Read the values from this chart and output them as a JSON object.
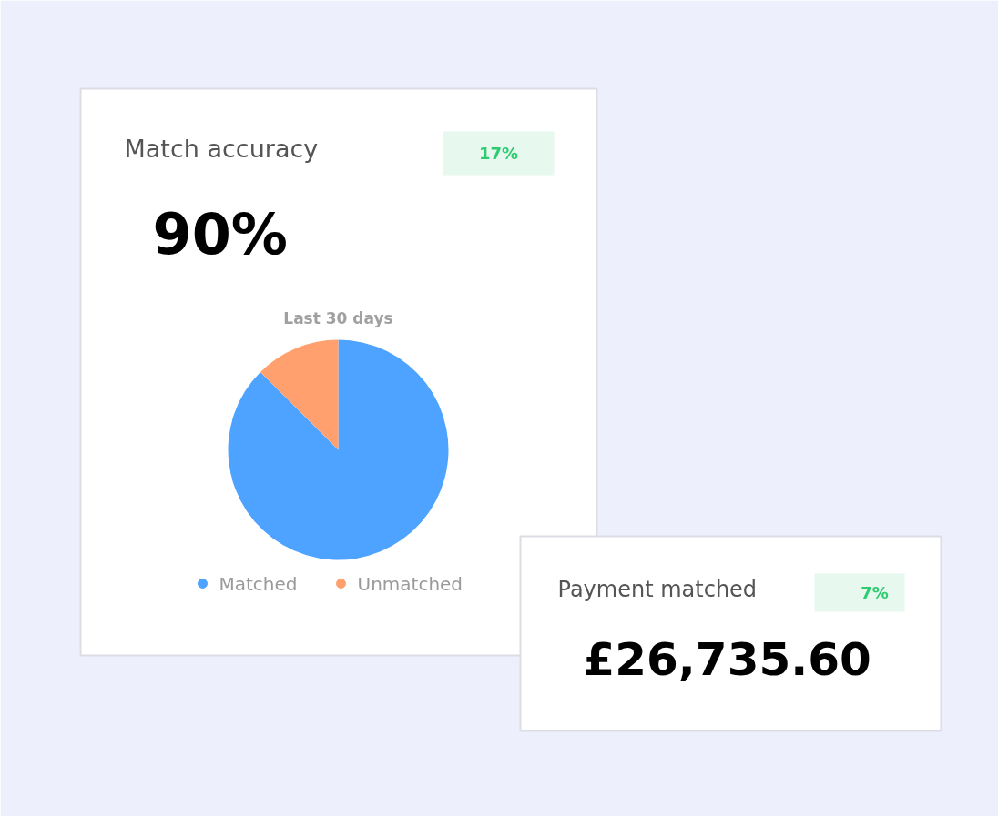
{
  "chart_data": {
    "type": "pie",
    "title": "Last 30 days",
    "categories": [
      "Matched",
      "Unmatched"
    ],
    "values": [
      87.5,
      12.5
    ],
    "colors": [
      "#4da3ff",
      "#ffa06e"
    ],
    "legend": "bottom",
    "annotations": [
      "Match accuracy",
      "17%",
      "90%",
      "Payment matched",
      "7%",
      "£26,735.60"
    ]
  }
}
